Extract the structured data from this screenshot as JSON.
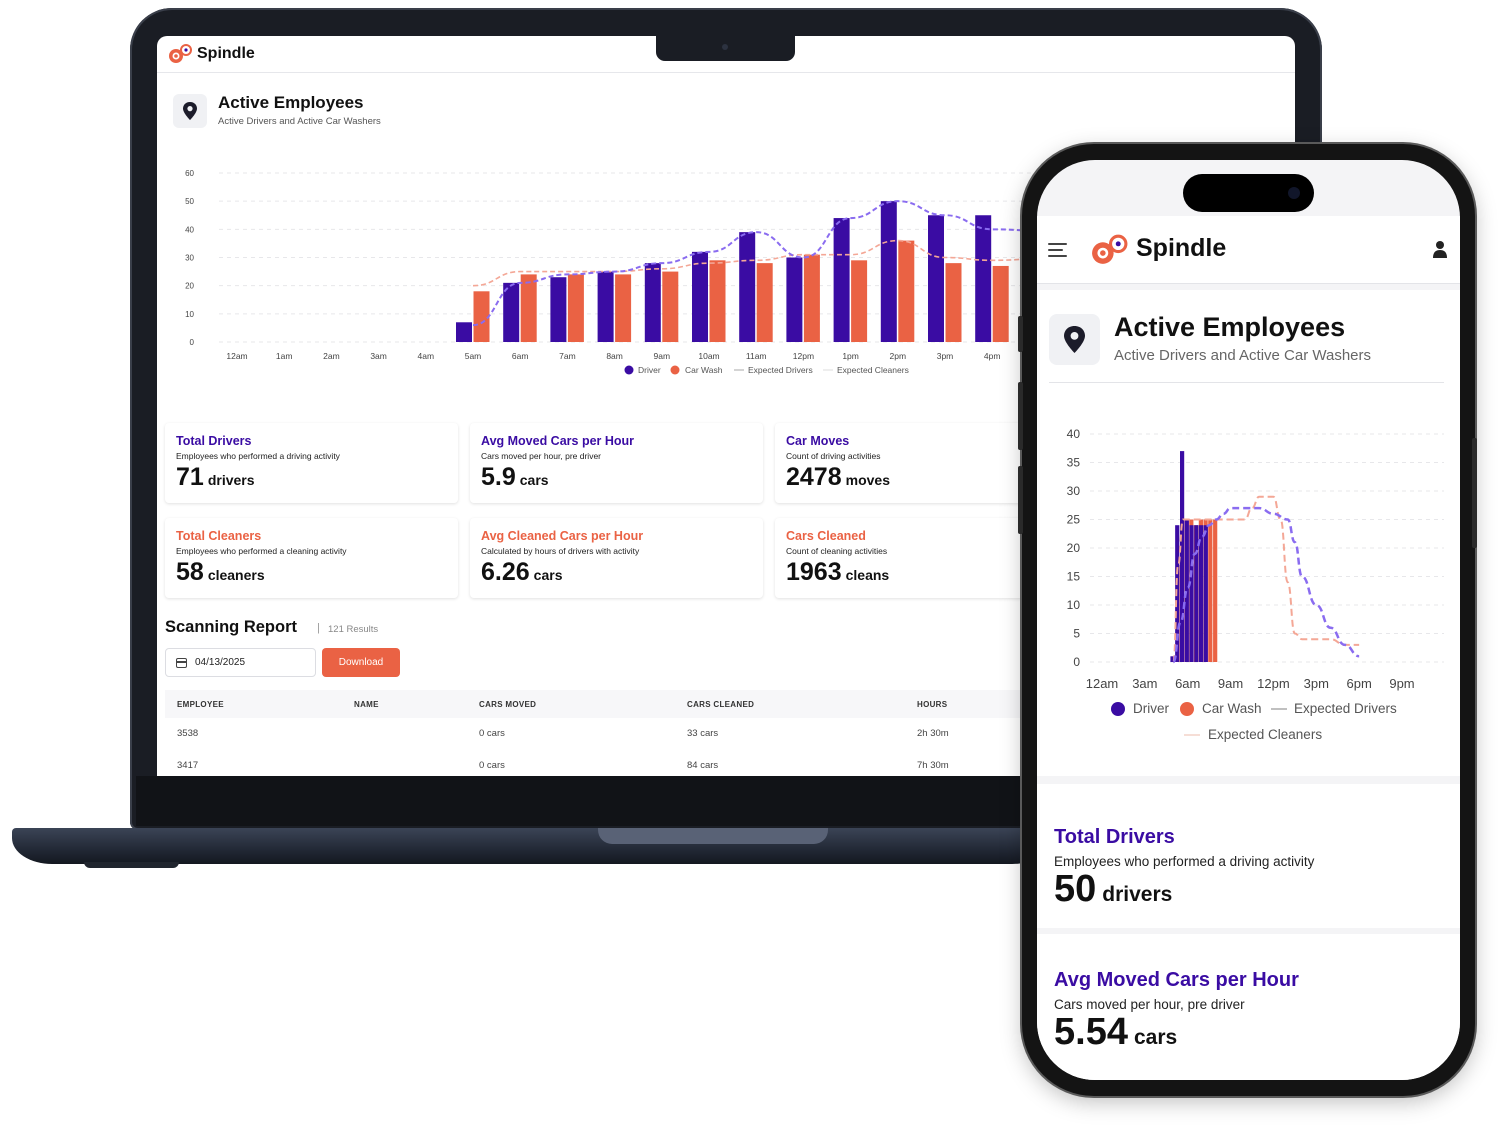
{
  "brand": {
    "name": "Spindle"
  },
  "colors": {
    "driver": "#3a0ca3",
    "car_wash": "#ea6244",
    "expected_drivers": "#8a6cf0",
    "expected_cleaners": "#f4a796"
  },
  "icons": {
    "logo": "spindle-logo-icon",
    "pin": "map-pin-icon",
    "calendar": "calendar-icon",
    "menu": "hamburger-menu-icon",
    "user": "user-icon"
  },
  "laptop": {
    "header": {
      "brand": "Spindle"
    },
    "panel": {
      "title": "Active Employees",
      "subtitle": "Active Drivers and Active Car Washers"
    },
    "stats": [
      {
        "title": "Total Drivers",
        "desc": "Employees who performed a driving activity",
        "value": "71",
        "unit": "drivers",
        "color": "purple"
      },
      {
        "title": "Avg Moved Cars per Hour",
        "desc": "Cars moved per hour, pre driver",
        "value": "5.9",
        "unit": "cars",
        "color": "purple"
      },
      {
        "title": "Car Moves",
        "desc": "Count of driving activities",
        "value": "2478",
        "unit": "moves",
        "color": "purple"
      },
      {
        "title": "Total Cleaners",
        "desc": "Employees who performed a cleaning activity",
        "value": "58",
        "unit": "cleaners",
        "color": "orange"
      },
      {
        "title": "Avg Cleaned Cars per Hour",
        "desc": "Calculated by hours of drivers with activity",
        "value": "6.26",
        "unit": "cars",
        "color": "orange"
      },
      {
        "title": "Cars Cleaned",
        "desc": "Count of cleaning activities",
        "value": "1963",
        "unit": "cleans",
        "color": "orange"
      }
    ],
    "report": {
      "title": "Scanning Report",
      "separator": "|",
      "count": "121 Results",
      "date_value": "04/13/2025",
      "download_label": "Download",
      "columns": [
        "EMPLOYEE",
        "NAME",
        "CARS MOVED",
        "CARS CLEANED",
        "HOURS"
      ],
      "rows": [
        {
          "employee": "3538",
          "name": "",
          "cars_moved": "0 cars",
          "cars_cleaned": "33 cars",
          "hours": "2h 30m"
        },
        {
          "employee": "3417",
          "name": "",
          "cars_moved": "0 cars",
          "cars_cleaned": "84 cars",
          "hours": "7h 30m"
        }
      ]
    }
  },
  "phone": {
    "header": {
      "brand": "Spindle"
    },
    "panel": {
      "title": "Active Employees",
      "subtitle": "Active Drivers and Active Car Washers"
    },
    "stats": [
      {
        "title": "Total Drivers",
        "desc": "Employees who performed a driving activity",
        "value": "50",
        "unit": "drivers"
      },
      {
        "title": "Avg Moved Cars per Hour",
        "desc": "Cars moved per hour, pre driver",
        "value": "5.54",
        "unit": "cars"
      }
    ]
  },
  "chart_data": [
    {
      "type": "bar",
      "categories": [
        "12am",
        "1am",
        "2am",
        "3am",
        "4am",
        "5am",
        "6am",
        "7am",
        "8am",
        "9am",
        "10am",
        "11am",
        "12pm",
        "1pm",
        "2pm",
        "3pm",
        "4pm"
      ],
      "series": [
        {
          "name": "Driver",
          "values": [
            0,
            0,
            0,
            0,
            0,
            7,
            21,
            23,
            25,
            28,
            32,
            39,
            30,
            44,
            50,
            45,
            45
          ]
        },
        {
          "name": "Car Wash",
          "values": [
            0,
            0,
            0,
            0,
            0,
            18,
            24,
            24,
            24,
            25,
            29,
            28,
            31,
            29,
            36,
            28,
            27
          ]
        },
        {
          "name": "Expected Drivers",
          "values": [
            null,
            null,
            null,
            null,
            null,
            6,
            21,
            24,
            25,
            28,
            32,
            39,
            30,
            44,
            50,
            45,
            40
          ]
        },
        {
          "name": "Expected Cleaners",
          "values": [
            null,
            null,
            null,
            null,
            null,
            20,
            25,
            25,
            25,
            26,
            28,
            29,
            31,
            31,
            36,
            30,
            29
          ]
        }
      ],
      "legend": [
        "Driver",
        "Car Wash",
        "Expected Drivers",
        "Expected Cleaners"
      ],
      "legend_position": "bottom",
      "yticks": [
        0,
        10,
        20,
        30,
        40,
        50,
        60
      ],
      "ylim": [
        0,
        60
      ],
      "grid": true
    },
    {
      "type": "bar",
      "xticks": [
        "12am",
        "3am",
        "6am",
        "9am",
        "12pm",
        "3pm",
        "6pm",
        "9pm"
      ],
      "x": [
        5,
        5.33,
        5.67,
        6,
        6.33,
        6.67,
        7,
        7.33,
        7.67,
        8,
        8.33,
        8.67,
        9,
        9.33,
        9.67,
        10,
        10.33,
        10.67,
        11,
        11.33,
        11.67,
        12,
        12.33,
        12.67,
        13,
        13.33,
        13.67,
        14,
        14.33,
        14.67,
        15,
        15.33,
        15.67,
        16,
        16.33,
        16.67,
        17,
        17.33,
        17.67,
        18,
        18.33,
        18.67,
        19
      ],
      "series": [
        {
          "name": "Driver",
          "values": [
            1,
            24,
            37,
            25,
            24,
            24,
            24,
            24,
            0,
            0,
            0,
            0,
            0,
            0,
            0,
            0,
            0,
            0,
            0,
            0,
            0,
            0,
            0,
            0,
            0,
            0,
            0,
            0,
            0,
            0,
            0,
            0,
            0,
            0,
            0,
            0,
            0,
            0,
            0,
            0,
            0,
            0,
            0
          ]
        },
        {
          "name": "Car Wash",
          "values": [
            0,
            17,
            25,
            25,
            24,
            25,
            25,
            25,
            25,
            0,
            0,
            0,
            0,
            0,
            0,
            0,
            0,
            0,
            0,
            0,
            0,
            0,
            0,
            0,
            0,
            0,
            0,
            0,
            0,
            0,
            0,
            0,
            0,
            0,
            0,
            0,
            0,
            0,
            0,
            0,
            0,
            0,
            0
          ]
        },
        {
          "name": "Expected Drivers",
          "points": [
            [
              5,
              0
            ],
            [
              5.5,
              7
            ],
            [
              6,
              13
            ],
            [
              6.5,
              19
            ],
            [
              7,
              22
            ],
            [
              7.5,
              24
            ],
            [
              8,
              25
            ],
            [
              8.5,
              26
            ],
            [
              9,
              27
            ],
            [
              10,
              27
            ],
            [
              11,
              27
            ],
            [
              12,
              26
            ],
            [
              13,
              25
            ],
            [
              13.5,
              21
            ],
            [
              14,
              15
            ],
            [
              15,
              10
            ],
            [
              16,
              6
            ],
            [
              17,
              3
            ],
            [
              18,
              1
            ]
          ]
        },
        {
          "name": "Expected Cleaners",
          "points": [
            [
              5,
              0
            ],
            [
              5.33,
              17
            ],
            [
              5.67,
              25
            ],
            [
              6,
              25
            ],
            [
              7,
              25
            ],
            [
              8,
              25
            ],
            [
              9,
              25
            ],
            [
              10,
              25
            ],
            [
              10.5,
              27
            ],
            [
              11,
              29
            ],
            [
              12,
              29
            ],
            [
              12.5,
              25
            ],
            [
              13,
              14
            ],
            [
              13.5,
              5
            ],
            [
              14,
              4
            ],
            [
              15,
              4
            ],
            [
              16,
              4
            ],
            [
              17,
              3
            ],
            [
              18,
              3
            ]
          ]
        }
      ],
      "legend": [
        "Driver",
        "Car Wash",
        "Expected Drivers",
        "Expected Cleaners"
      ],
      "legend_position": "bottom",
      "yticks": [
        0,
        5,
        10,
        15,
        20,
        25,
        30,
        35,
        40
      ],
      "ylim": [
        0,
        40
      ],
      "xlim": [
        0,
        21
      ],
      "grid": true
    }
  ]
}
